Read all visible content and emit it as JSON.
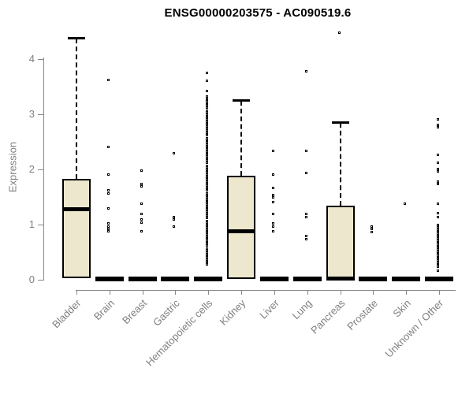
{
  "title": "ENSG00000203575 - AC090519.6",
  "chart_data": {
    "type": "boxplot",
    "title": "ENSG00000203575 - AC090519.6",
    "xlabel": "",
    "ylabel": "Expression",
    "ylim": [
      0,
      4.5
    ],
    "yticks": [
      0,
      1,
      2,
      3,
      4
    ],
    "grid": false,
    "colors": {
      "box_fill": "#ece7cd",
      "box_border": "#000000",
      "median": "#000000",
      "axis": "#888888",
      "text": "#808080",
      "title": "#000000"
    },
    "categories": [
      {
        "label": "Bladder",
        "flat": false,
        "q1": 0.03,
        "median": 1.29,
        "q3": 1.83,
        "whisker_low": 0,
        "whisker_high": 4.37,
        "outliers": []
      },
      {
        "label": "Brain",
        "flat": true,
        "q1": 0,
        "median": 0.01,
        "q3": 0.02,
        "whisker_low": 0,
        "whisker_high": 0.02,
        "outliers": [
          3.6,
          2.39,
          1.88,
          1.6,
          1.55,
          1.27,
          1.0,
          0.95,
          0.9,
          0.86
        ]
      },
      {
        "label": "Breast",
        "flat": true,
        "q1": 0,
        "median": 0.01,
        "q3": 0.02,
        "whisker_low": 0,
        "whisker_high": 0.02,
        "outliers": [
          1.96,
          1.72,
          1.67,
          1.36,
          1.17,
          1.07,
          1.02,
          0.86
        ]
      },
      {
        "label": "Gastric",
        "flat": true,
        "q1": 0,
        "median": 0.01,
        "q3": 0.02,
        "whisker_low": 0,
        "whisker_high": 0.02,
        "outliers": [
          2.27,
          1.12,
          1.07,
          0.94
        ]
      },
      {
        "label": "Hematopoietic cells",
        "flat": true,
        "q1": 0,
        "median": 0.01,
        "q3": 0.02,
        "whisker_low": 0,
        "whisker_high": 0.02,
        "outliers": [
          3.73,
          3.59,
          3.4,
          3.3,
          3.26,
          3.22,
          3.18,
          3.14,
          3.1,
          3.05,
          3.01,
          2.97,
          2.93,
          2.89,
          2.85,
          2.8,
          2.76,
          2.72,
          2.68,
          2.64,
          2.6,
          2.55,
          2.51,
          2.47,
          2.43,
          2.39,
          2.35,
          2.3,
          2.26,
          2.22,
          2.18,
          2.14,
          2.1,
          2.05,
          2.01,
          1.97,
          1.93,
          1.89,
          1.85,
          1.8,
          1.76,
          1.72,
          1.68,
          1.64,
          1.6,
          1.55,
          1.51,
          1.47,
          1.43,
          1.39,
          1.35,
          1.3,
          1.26,
          1.22,
          1.18,
          1.14,
          1.1,
          1.05,
          1.01,
          0.97,
          0.93,
          0.89,
          0.85,
          0.8,
          0.76,
          0.72,
          0.68,
          0.64,
          0.6,
          0.55,
          0.51,
          0.47,
          0.43,
          0.39,
          0.35,
          0.3,
          0.26
        ]
      },
      {
        "label": "Kidney",
        "flat": false,
        "q1": 0.01,
        "median": 0.89,
        "q3": 1.89,
        "whisker_low": 0,
        "whisker_high": 3.24,
        "outliers": []
      },
      {
        "label": "Liver",
        "flat": true,
        "q1": 0,
        "median": 0.01,
        "q3": 0.02,
        "whisker_low": 0,
        "whisker_high": 0.02,
        "outliers": [
          2.31,
          1.89,
          1.64,
          1.52,
          1.47,
          1.39,
          1.17,
          1.0,
          0.95,
          0.86
        ]
      },
      {
        "label": "Lung",
        "flat": true,
        "q1": 0,
        "median": 0.01,
        "q3": 0.02,
        "whisker_low": 0,
        "whisker_high": 0.02,
        "outliers": [
          3.76,
          2.31,
          1.91,
          1.17,
          1.11,
          0.77,
          0.71
        ]
      },
      {
        "label": "Pancreas",
        "flat": false,
        "q1": 0.02,
        "median": 0.03,
        "q3": 1.35,
        "whisker_low": 0,
        "whisker_high": 2.85,
        "outliers": [
          4.46
        ]
      },
      {
        "label": "Prostate",
        "flat": true,
        "q1": 0,
        "median": 0.01,
        "q3": 0.02,
        "whisker_low": 0,
        "whisker_high": 0.02,
        "outliers": [
          0.95,
          0.9,
          0.85
        ]
      },
      {
        "label": "Skin",
        "flat": true,
        "q1": 0,
        "median": 0.01,
        "q3": 0.02,
        "whisker_low": 0,
        "whisker_high": 0.02,
        "outliers": [
          1.36
        ]
      },
      {
        "label": "Unknown / Other",
        "flat": true,
        "q1": 0,
        "median": 0.01,
        "q3": 0.02,
        "whisker_low": 0,
        "whisker_high": 0.02,
        "outliers": [
          2.89,
          2.79,
          2.74,
          2.24,
          2.1,
          1.99,
          1.94,
          1.76,
          1.71,
          1.36,
          1.19,
          1.12,
          0.97,
          0.93,
          0.89,
          0.85,
          0.81,
          0.77,
          0.73,
          0.69,
          0.65,
          0.61,
          0.57,
          0.53,
          0.49,
          0.45,
          0.41,
          0.37,
          0.33,
          0.29,
          0.25,
          0.21,
          0.14
        ]
      }
    ]
  }
}
